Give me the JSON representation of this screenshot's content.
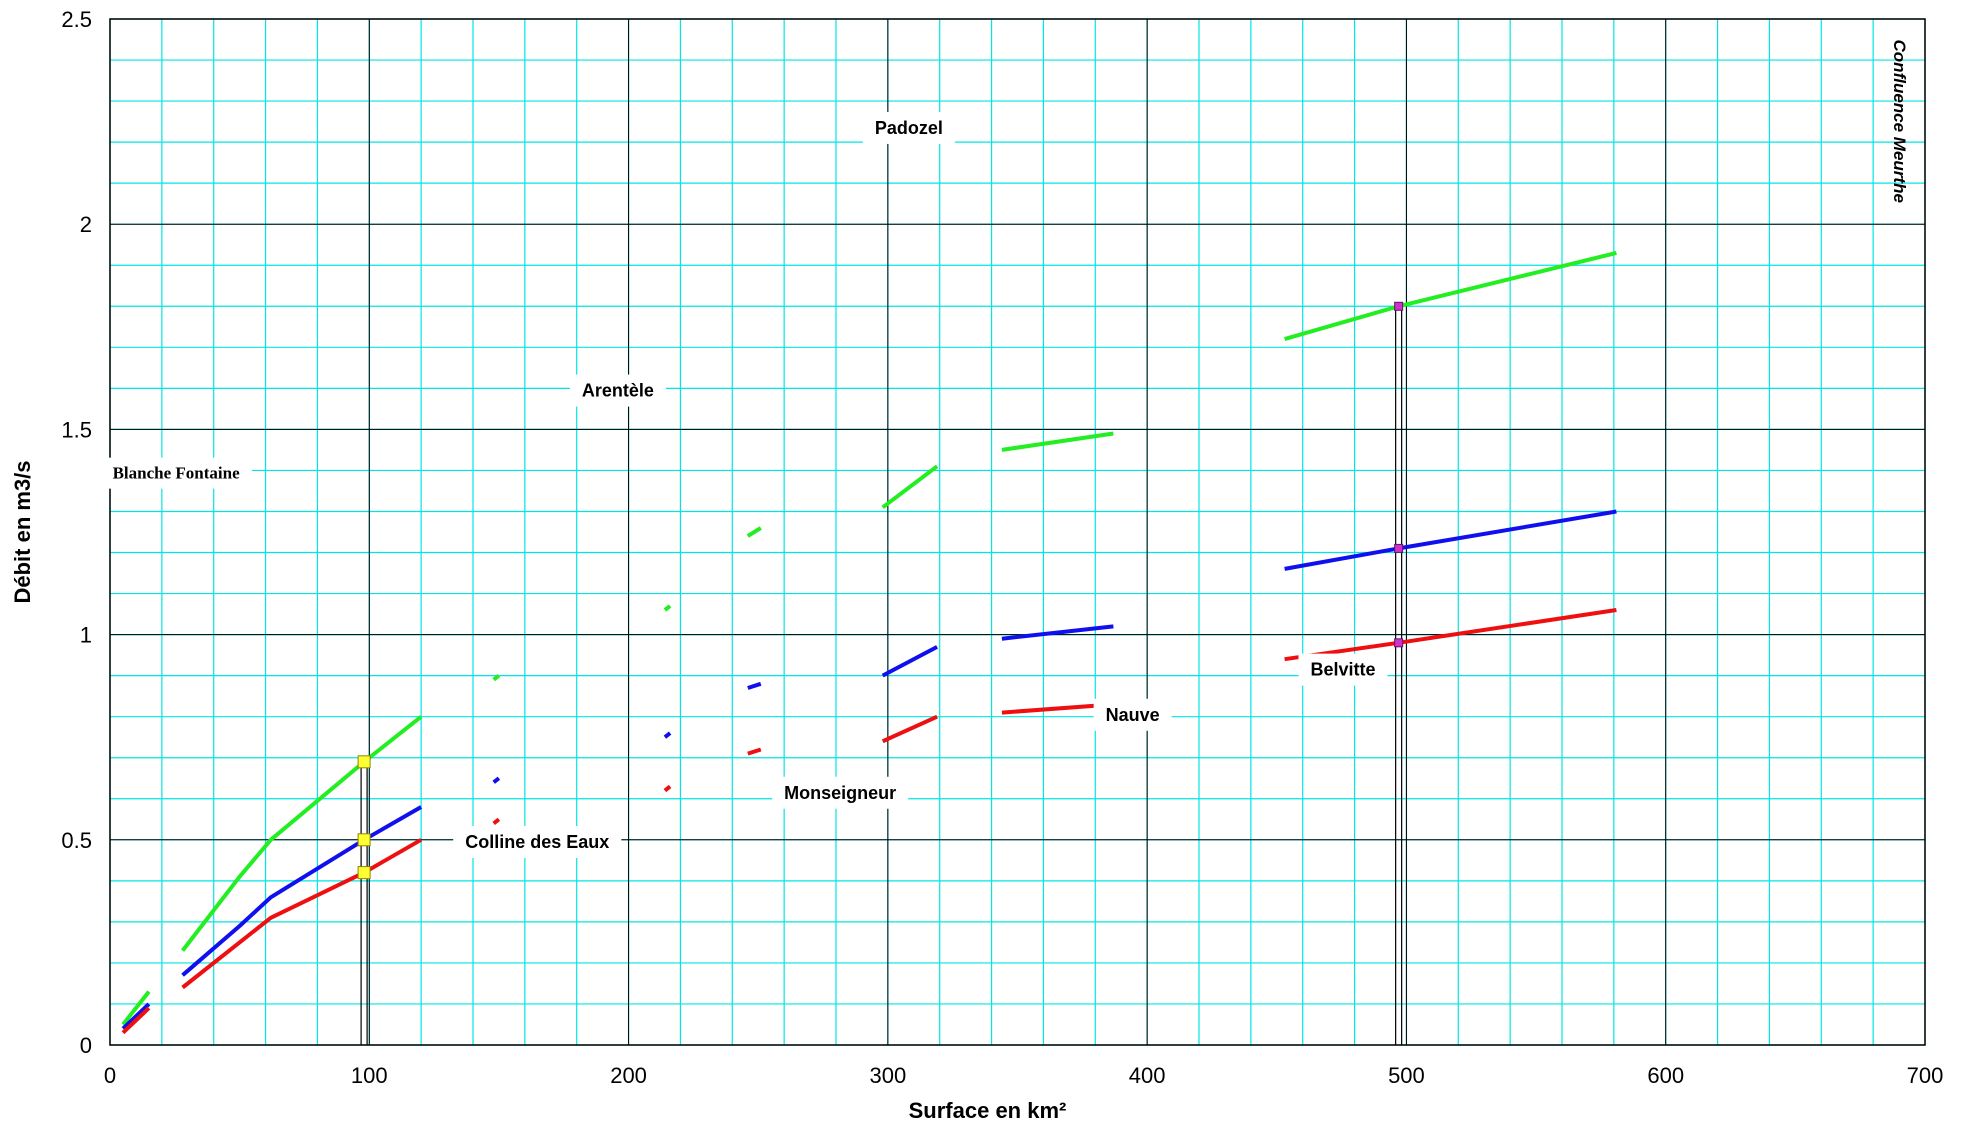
{
  "chart_data": {
    "type": "line",
    "title": "",
    "xlabel": "Surface en km²",
    "ylabel": "Débit en m3/s",
    "xlim": [
      0,
      700
    ],
    "ylim": [
      0,
      2.5
    ],
    "xticks": [
      0,
      100,
      200,
      300,
      400,
      500,
      600,
      700
    ],
    "yticks": [
      0,
      0.5,
      1,
      1.5,
      2,
      2.5
    ],
    "xtick_labels": [
      "0",
      "100",
      "200",
      "300",
      "400",
      "500",
      "600",
      "700"
    ],
    "ytick_labels": [
      "0",
      "0.5",
      "1",
      "1.5",
      "2",
      "2.5"
    ],
    "grid": true,
    "legend": "none",
    "colors": {
      "green": "#22ee22",
      "blue": "#1010ee",
      "red": "#ee1010",
      "major_grid": "#000000",
      "minor_grid": "#00e5e5",
      "marker_yellow": "#ffff33",
      "marker_purple": "#cc33cc"
    },
    "series": [
      {
        "color": "green",
        "segments": [
          [
            [
              5,
              0.05
            ],
            [
              15,
              0.13
            ]
          ],
          [
            [
              28,
              0.23
            ],
            [
              50,
              0.41
            ],
            [
              62,
              0.5
            ],
            [
              98,
              0.69
            ],
            [
              120,
              0.8
            ]
          ],
          [
            [
              148,
              0.89
            ],
            [
              150,
              0.9
            ]
          ],
          [
            [
              214,
              1.06
            ],
            [
              216,
              1.07
            ]
          ],
          [
            [
              246,
              1.24
            ],
            [
              251,
              1.26
            ]
          ],
          [
            [
              298,
              1.31
            ],
            [
              319,
              1.41
            ]
          ],
          [
            [
              344,
              1.45
            ],
            [
              387,
              1.49
            ]
          ],
          [
            [
              453,
              1.72
            ],
            [
              497,
              1.8
            ],
            [
              581,
              1.93
            ]
          ]
        ]
      },
      {
        "color": "blue",
        "segments": [
          [
            [
              5,
              0.04
            ],
            [
              15,
              0.1
            ]
          ],
          [
            [
              28,
              0.17
            ],
            [
              50,
              0.29
            ],
            [
              62,
              0.36
            ],
            [
              98,
              0.5
            ],
            [
              120,
              0.58
            ]
          ],
          [
            [
              148,
              0.64
            ],
            [
              150,
              0.65
            ]
          ],
          [
            [
              214,
              0.75
            ],
            [
              216,
              0.76
            ]
          ],
          [
            [
              246,
              0.87
            ],
            [
              251,
              0.88
            ]
          ],
          [
            [
              298,
              0.9
            ],
            [
              319,
              0.97
            ]
          ],
          [
            [
              344,
              0.99
            ],
            [
              387,
              1.02
            ]
          ],
          [
            [
              453,
              1.16
            ],
            [
              497,
              1.21
            ],
            [
              581,
              1.3
            ]
          ]
        ]
      },
      {
        "color": "red",
        "segments": [
          [
            [
              5,
              0.03
            ],
            [
              15,
              0.09
            ]
          ],
          [
            [
              28,
              0.14
            ],
            [
              50,
              0.25
            ],
            [
              62,
              0.31
            ],
            [
              98,
              0.42
            ],
            [
              120,
              0.5
            ]
          ],
          [
            [
              148,
              0.54
            ],
            [
              150,
              0.55
            ]
          ],
          [
            [
              214,
              0.62
            ],
            [
              216,
              0.63
            ]
          ],
          [
            [
              246,
              0.71
            ],
            [
              251,
              0.72
            ]
          ],
          [
            [
              298,
              0.74
            ],
            [
              319,
              0.8
            ]
          ],
          [
            [
              344,
              0.81
            ],
            [
              387,
              0.83
            ]
          ],
          [
            [
              453,
              0.94
            ],
            [
              497,
              0.98
            ],
            [
              581,
              1.06
            ]
          ]
        ]
      }
    ],
    "markers": [
      {
        "x": 98,
        "y": 0.69,
        "color": "marker_yellow"
      },
      {
        "x": 98,
        "y": 0.5,
        "color": "marker_yellow"
      },
      {
        "x": 98,
        "y": 0.42,
        "color": "marker_yellow"
      },
      {
        "x": 497,
        "y": 1.8,
        "color": "marker_purple"
      },
      {
        "x": 497,
        "y": 1.21,
        "color": "marker_purple"
      },
      {
        "x": 497,
        "y": 0.98,
        "color": "marker_purple"
      }
    ],
    "reference_lines_x": [
      98,
      497
    ],
    "annotations": [
      {
        "text": "Blanche Fontaine",
        "x": 1,
        "y": 1.38,
        "style": "serif"
      },
      {
        "text": "Arentèle",
        "x": 182,
        "y": 1.58,
        "style": "sans"
      },
      {
        "text": "Padozel",
        "x": 295,
        "y": 2.22,
        "style": "sans"
      },
      {
        "text": "Colline des Eaux",
        "x": 137,
        "y": 0.48,
        "style": "sans"
      },
      {
        "text": "Monseigneur",
        "x": 260,
        "y": 0.6,
        "style": "sans"
      },
      {
        "text": "Nauve",
        "x": 384,
        "y": 0.79,
        "style": "sans"
      },
      {
        "text": "Belvitte",
        "x": 463,
        "y": 0.9,
        "style": "sans"
      },
      {
        "text": "Confluence Meurthe",
        "x": 688,
        "y": 2.45,
        "style": "vertical"
      }
    ]
  }
}
